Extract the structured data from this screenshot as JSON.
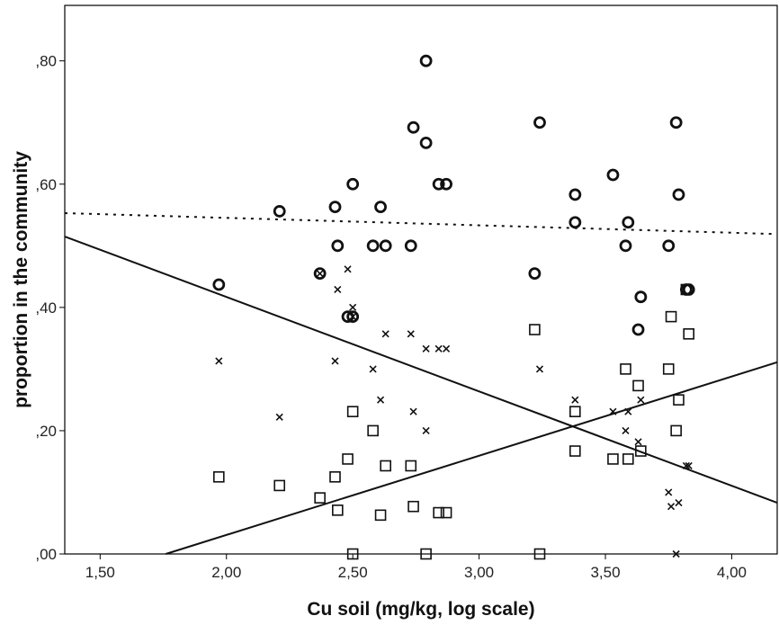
{
  "chart_data": {
    "type": "scatter",
    "xlabel": "Cu soil (mg/kg, log scale)",
    "ylabel": "proportion in the community",
    "xlim": [
      1.36,
      4.18
    ],
    "ylim": [
      0,
      0.89
    ],
    "x_ticks": [
      1.5,
      2.0,
      2.5,
      3.0,
      3.5,
      4.0
    ],
    "x_tick_labels": [
      "1,50",
      "2,00",
      "2,50",
      "3,00",
      "3,50",
      "4,00"
    ],
    "y_ticks": [
      0,
      0.2,
      0.4,
      0.6,
      0.8
    ],
    "y_tick_labels": [
      ",00",
      ",20",
      ",40",
      ",60",
      ",80"
    ],
    "grid": false,
    "series": [
      {
        "marker": "circle",
        "points": [
          [
            1.97,
            0.437
          ],
          [
            2.21,
            0.556
          ],
          [
            2.37,
            0.455
          ],
          [
            2.43,
            0.563
          ],
          [
            2.44,
            0.5
          ],
          [
            2.48,
            0.385
          ],
          [
            2.5,
            0.385
          ],
          [
            2.5,
            0.6
          ],
          [
            2.58,
            0.5
          ],
          [
            2.61,
            0.563
          ],
          [
            2.63,
            0.5
          ],
          [
            2.73,
            0.5
          ],
          [
            2.74,
            0.692
          ],
          [
            2.79,
            0.8
          ],
          [
            2.79,
            0.667
          ],
          [
            2.84,
            0.6
          ],
          [
            2.87,
            0.6
          ],
          [
            3.22,
            0.455
          ],
          [
            3.24,
            0.7
          ],
          [
            3.38,
            0.583
          ],
          [
            3.38,
            0.538
          ],
          [
            3.53,
            0.615
          ],
          [
            3.58,
            0.5
          ],
          [
            3.59,
            0.538
          ],
          [
            3.63,
            0.364
          ],
          [
            3.64,
            0.417
          ],
          [
            3.75,
            0.5
          ],
          [
            3.78,
            0.7
          ],
          [
            3.79,
            0.583
          ],
          [
            3.82,
            0.429
          ],
          [
            3.83,
            0.429
          ]
        ]
      },
      {
        "marker": "cross",
        "points": [
          [
            1.97,
            0.313
          ],
          [
            2.21,
            0.222
          ],
          [
            2.37,
            0.455
          ],
          [
            2.43,
            0.313
          ],
          [
            2.44,
            0.429
          ],
          [
            2.48,
            0.462
          ],
          [
            2.5,
            0.4
          ],
          [
            2.5,
            0.385
          ],
          [
            2.58,
            0.3
          ],
          [
            2.61,
            0.25
          ],
          [
            2.63,
            0.357
          ],
          [
            2.73,
            0.357
          ],
          [
            2.74,
            0.231
          ],
          [
            2.79,
            0.333
          ],
          [
            2.79,
            0.2
          ],
          [
            2.84,
            0.333
          ],
          [
            2.87,
            0.333
          ],
          [
            3.24,
            0.3
          ],
          [
            3.38,
            0.25
          ],
          [
            3.53,
            0.231
          ],
          [
            3.58,
            0.2
          ],
          [
            3.59,
            0.231
          ],
          [
            3.63,
            0.182
          ],
          [
            3.64,
            0.25
          ],
          [
            3.75,
            0.1
          ],
          [
            3.76,
            0.077
          ],
          [
            3.78,
            0.0
          ],
          [
            3.79,
            0.083
          ],
          [
            3.82,
            0.143
          ],
          [
            3.83,
            0.143
          ]
        ]
      },
      {
        "marker": "square",
        "points": [
          [
            1.97,
            0.125
          ],
          [
            2.21,
            0.111
          ],
          [
            2.37,
            0.091
          ],
          [
            2.43,
            0.125
          ],
          [
            2.44,
            0.071
          ],
          [
            2.48,
            0.154
          ],
          [
            2.5,
            0.231
          ],
          [
            2.5,
            0.0
          ],
          [
            2.58,
            0.2
          ],
          [
            2.61,
            0.063
          ],
          [
            2.63,
            0.143
          ],
          [
            2.73,
            0.143
          ],
          [
            2.74,
            0.077
          ],
          [
            2.79,
            0.0
          ],
          [
            2.84,
            0.067
          ],
          [
            2.87,
            0.067
          ],
          [
            3.22,
            0.364
          ],
          [
            3.24,
            0.0
          ],
          [
            3.38,
            0.231
          ],
          [
            3.38,
            0.167
          ],
          [
            3.53,
            0.154
          ],
          [
            3.58,
            0.3
          ],
          [
            3.59,
            0.154
          ],
          [
            3.63,
            0.273
          ],
          [
            3.64,
            0.167
          ],
          [
            3.75,
            0.3
          ],
          [
            3.76,
            0.385
          ],
          [
            3.78,
            0.2
          ],
          [
            3.79,
            0.25
          ],
          [
            3.82,
            0.429
          ],
          [
            3.83,
            0.357
          ]
        ]
      }
    ],
    "fit_lines": [
      {
        "style": "dotted",
        "x": [
          1.36,
          4.18
        ],
        "y": [
          0.553,
          0.519
        ]
      },
      {
        "style": "solid",
        "x": [
          1.36,
          4.18
        ],
        "y": [
          0.515,
          0.083
        ]
      },
      {
        "style": "solid",
        "x": [
          1.76,
          4.18
        ],
        "y": [
          0.0,
          0.311
        ]
      }
    ]
  }
}
